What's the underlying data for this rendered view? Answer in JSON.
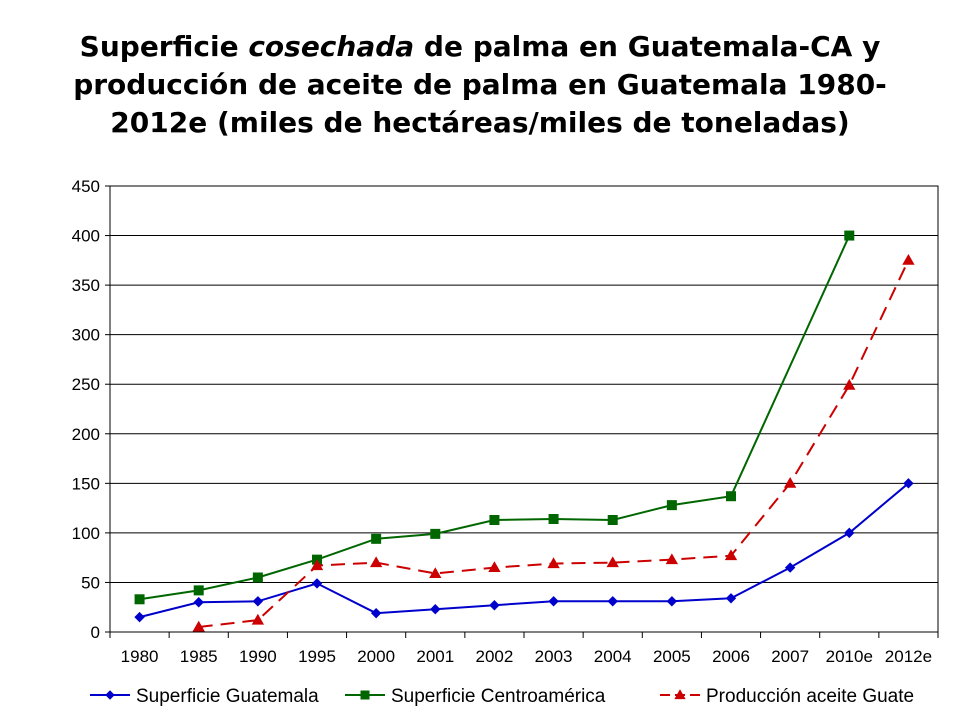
{
  "title": {
    "part1": "Superficie ",
    "part2": "cosechada",
    "part3": " de palma en Guatemala-CA y producción de aceite de palma en Guatemala 1980-2012e (miles de hectáreas/miles de toneladas)"
  },
  "chart_data": {
    "type": "line",
    "title": "Superficie cosechada de palma en Guatemala-CA y producción de aceite de palma en Guatemala 1980-2012e (miles de hectáreas/miles de toneladas)",
    "categories": [
      "1980",
      "1985",
      "1990",
      "1995",
      "2000",
      "2001",
      "2002",
      "2003",
      "2004",
      "2005",
      "2006",
      "2007",
      "2010e",
      "2012e"
    ],
    "ylim": [
      0,
      450
    ],
    "yticks": [
      0,
      50,
      100,
      150,
      200,
      250,
      300,
      350,
      400,
      450
    ],
    "grid": true,
    "legend_position": "bottom",
    "series": [
      {
        "name": "Superficie Guatemala",
        "color": "#0000cc",
        "marker": "diamond",
        "dash": "solid",
        "values": [
          15,
          30,
          31,
          49,
          19,
          23,
          27,
          31,
          31,
          31,
          34,
          65,
          100,
          150
        ]
      },
      {
        "name": "Superficie Centroamérica",
        "color": "#006600",
        "marker": "square",
        "dash": "solid",
        "values": [
          33,
          42,
          55,
          73,
          94,
          99,
          113,
          114,
          113,
          128,
          137,
          null,
          400,
          null
        ]
      },
      {
        "name": "Producción aceite Guate",
        "color": "#cc0000",
        "marker": "triangle",
        "dash": "dashed",
        "values": [
          null,
          5,
          12,
          67,
          70,
          59,
          65,
          69,
          70,
          73,
          77,
          150,
          249,
          375
        ]
      }
    ]
  }
}
